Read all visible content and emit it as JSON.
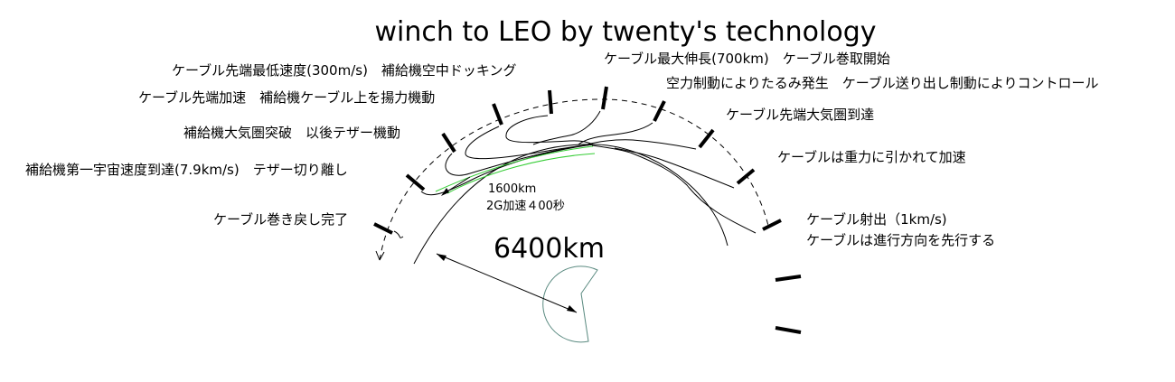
{
  "title": "winch to LEO by twenty's technology",
  "labels": {
    "eject": "ケーブル射出（1km/s)",
    "lead": "ケーブルは進行方向を先行する",
    "gravity": "ケーブルは重力に引かれて加速",
    "atmo_reach": "ケーブル先端大気圏到達",
    "aero": "空力制動によりたるみ発生　ケーブル送り出し制動によりコントロール",
    "max_len": "ケーブル最大伸長(700km)　ケーブル巻取開始",
    "min_speed": "ケーブル先端最低速度(300m/s)　補給機空中ドッキング",
    "accel": "ケーブル先端加速　補給機ケーブル上を揚力機動",
    "breakthrough": "補給機大気圏突破　以後テザー機動",
    "orbit": "補給機第一宇宙速度到達(7.9km/s)　テザー切り離し",
    "rewind": "ケーブル巻き戻し完了",
    "dist1": "1600km",
    "dist2": "2G加速４00秒",
    "radius": "6400km"
  }
}
